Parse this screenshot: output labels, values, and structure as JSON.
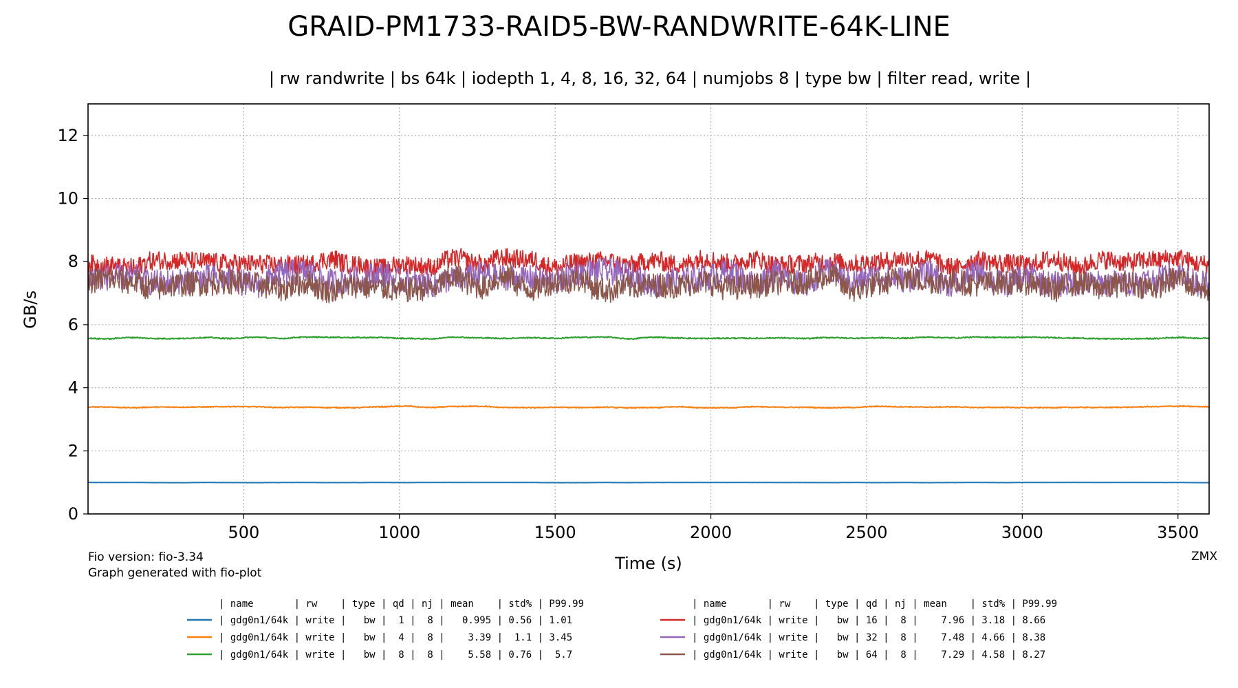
{
  "chart_data": {
    "type": "line",
    "title": "GRAID-PM1733-RAID5-BW-RANDWRITE-64K-LINE",
    "subtitle": "| rw randwrite | bs 64k | iodepth 1, 4, 8, 16, 32, 64 | numjobs 8 | type bw | filter read, write |",
    "xlabel": "Time (s)",
    "ylabel": "GB/s",
    "xlim": [
      0,
      3600
    ],
    "ylim": [
      0,
      13
    ],
    "xticks": [
      "500",
      "1000",
      "1500",
      "2000",
      "2500",
      "3000",
      "3500"
    ],
    "yticks": [
      "0",
      "2",
      "4",
      "6",
      "8",
      "10",
      "12"
    ],
    "grid": true,
    "notes": {
      "fio_version": "Fio version: fio-3.34",
      "generator": "Graph generated with fio-plot",
      "watermark": "ZMX"
    },
    "legend_header": "| name       | rw    | type | qd | nj | mean    | std% | P99.99",
    "legend_placement": "bottom",
    "series": [
      {
        "label": "| gdg0n1/64k | write |   bw |  1 |  8 |   0.995 | 0.56 | 1.01",
        "color": "#1f77b4",
        "mean": 0.995,
        "std_pct": 0.56,
        "p9999": 1.01,
        "qd": 1,
        "nj": 8
      },
      {
        "label": "| gdg0n1/64k | write |   bw |  4 |  8 |    3.39 |  1.1 | 3.45",
        "color": "#ff7f0e",
        "mean": 3.39,
        "std_pct": 1.1,
        "p9999": 3.45,
        "qd": 4,
        "nj": 8
      },
      {
        "label": "| gdg0n1/64k | write |   bw |  8 |  8 |    5.58 | 0.76 |  5.7",
        "color": "#2ca02c",
        "mean": 5.58,
        "std_pct": 0.76,
        "p9999": 5.7,
        "qd": 8,
        "nj": 8
      },
      {
        "label": "| gdg0n1/64k | write |   bw | 16 |  8 |    7.96 | 3.18 | 8.66",
        "color": "#d62728",
        "mean": 7.96,
        "std_pct": 3.18,
        "p9999": 8.66,
        "qd": 16,
        "nj": 8
      },
      {
        "label": "| gdg0n1/64k | write |   bw | 32 |  8 |    7.48 | 4.66 | 8.38",
        "color": "#9467bd",
        "mean": 7.48,
        "std_pct": 4.66,
        "p9999": 8.38,
        "qd": 32,
        "nj": 8
      },
      {
        "label": "| gdg0n1/64k | write |   bw | 64 |  8 |    7.29 | 4.58 | 8.27",
        "color": "#8c564b",
        "mean": 7.29,
        "std_pct": 4.58,
        "p9999": 8.27,
        "qd": 64,
        "nj": 8
      }
    ]
  }
}
